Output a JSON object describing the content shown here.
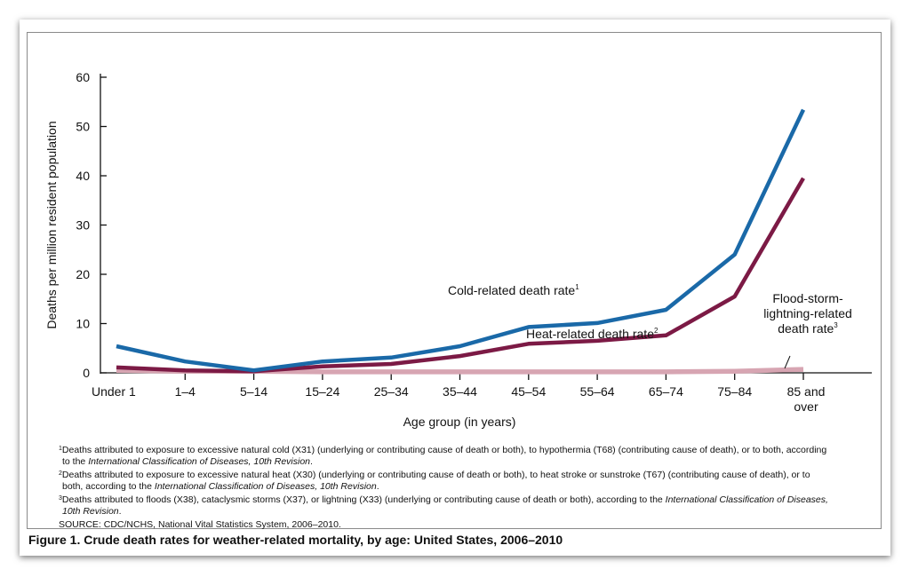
{
  "caption": "Figure 1. Crude death rates for weather-related mortality, by age: United States, 2006–2010",
  "footnotes": [
    {
      "mark": "1",
      "parts": [
        {
          "t": "Deaths attributed to exposure to excessive natural cold (X31) (underlying or contributing cause of death or both), to hypothermia (T68) (contributing cause of death), or to both, according"
        },
        {
          "t": "to the ",
          "br": true
        },
        {
          "t": "International Classification of Diseases, 10th Revision",
          "i": true
        },
        {
          "t": "."
        }
      ]
    },
    {
      "mark": "2",
      "parts": [
        {
          "t": "Deaths attributed to exposure to excessive natural heat (X30) (underlying or contributing cause of death or both), to heat stroke or sunstroke (T67) (contributing cause of death), or to"
        },
        {
          "t": "both, according to the ",
          "br": true
        },
        {
          "t": "International Classification of Diseases, 10th Revision",
          "i": true
        },
        {
          "t": "."
        }
      ]
    },
    {
      "mark": "3",
      "parts": [
        {
          "t": "Deaths attributed to floods (X38), cataclysmic storms (X37), or lightning (X33) (underlying or contributing cause of death or both), according to the "
        },
        {
          "t": "International Classification of Diseases,",
          "i": true
        },
        {
          "t": "10th Revision",
          "i": true,
          "br": true
        },
        {
          "t": "."
        }
      ]
    }
  ],
  "source": "SOURCE: CDC/NCHS, National Vital Statistics System, 2006–2010.",
  "chart_data": {
    "type": "line",
    "title": "",
    "xlabel": "Age group (in years)",
    "ylabel": "Deaths per million resident population",
    "ylim": [
      0,
      60
    ],
    "yticks": [
      0,
      10,
      20,
      30,
      40,
      50,
      60
    ],
    "grid": false,
    "categories": [
      "Under 1",
      "1–4",
      "5–14",
      "15–24",
      "25–34",
      "35–44",
      "45–54",
      "55–64",
      "65–74",
      "75–84",
      "85 and over"
    ],
    "series": [
      {
        "name": "Cold-related death rate",
        "note": "1",
        "color": "#1a69a8",
        "values": [
          5.4,
          2.3,
          0.5,
          2.3,
          3.1,
          5.4,
          9.3,
          10.1,
          12.8,
          24.0,
          53.4
        ]
      },
      {
        "name": "Heat-related death rate",
        "note": "2",
        "color": "#7c1a45",
        "values": [
          1.1,
          0.5,
          0.3,
          1.3,
          1.8,
          3.4,
          5.9,
          6.5,
          7.6,
          15.5,
          39.5
        ]
      },
      {
        "name": "Flood-storm-lightning-related death rate",
        "note": "3",
        "color": "#d7a5b2",
        "values": [
          0.5,
          0.3,
          0.3,
          0.2,
          0.2,
          0.2,
          0.2,
          0.2,
          0.2,
          0.3,
          0.7
        ]
      }
    ],
    "labels": [
      {
        "lines": [
          "Cold-related death rate"
        ],
        "note": "1"
      },
      {
        "lines": [
          "Heat-related death rate"
        ],
        "note": "2"
      },
      {
        "lines": [
          "Flood-storm-",
          "lightning-related",
          "death rate"
        ],
        "note": "3"
      }
    ]
  }
}
